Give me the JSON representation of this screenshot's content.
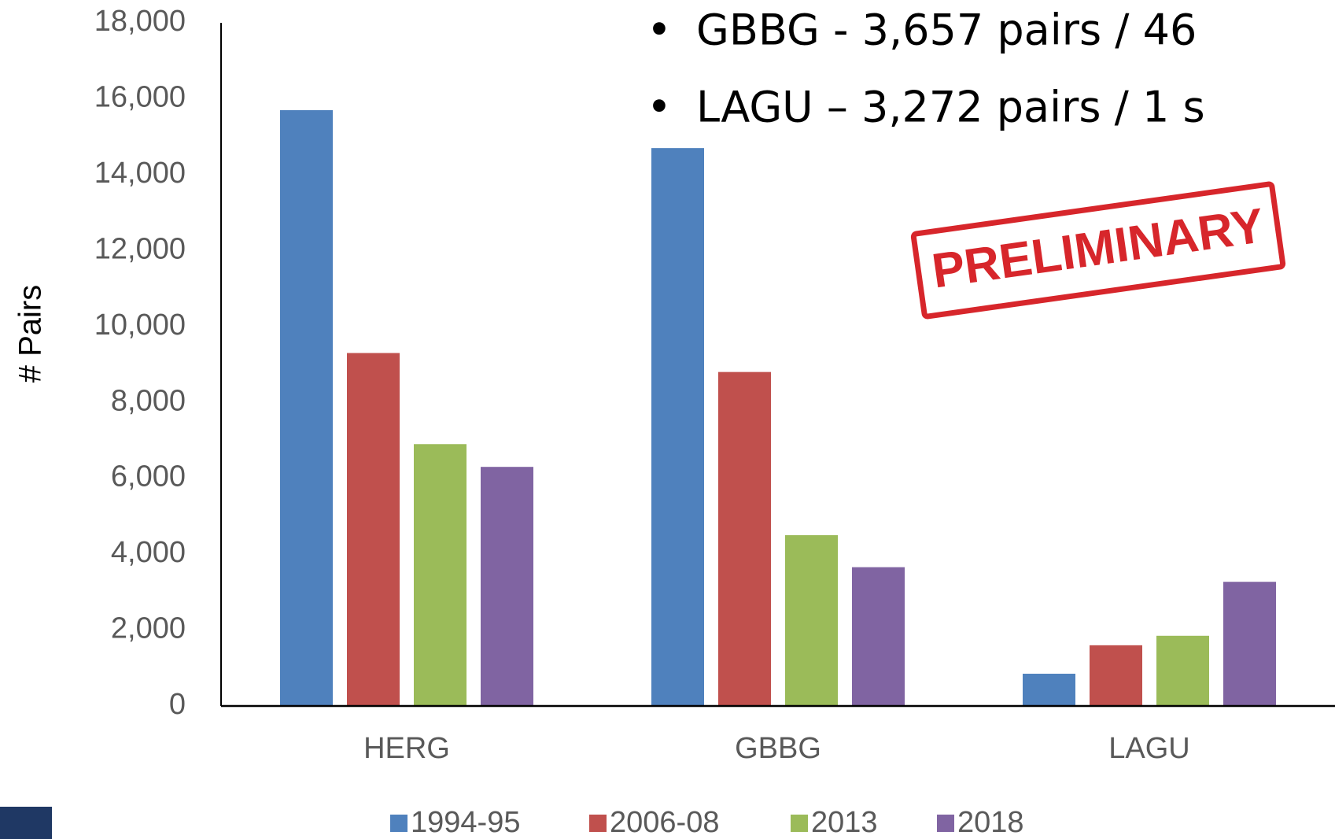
{
  "chart_data": {
    "type": "bar",
    "y_label": "# Pairs",
    "categories": [
      "HERG",
      "GBBG",
      "LAGU"
    ],
    "series": [
      {
        "name": "1994-95",
        "color": "#4f81bd",
        "values": [
          15700,
          14700,
          850
        ]
      },
      {
        "name": "2006-08",
        "color": "#c0504d",
        "values": [
          9300,
          8800,
          1600
        ]
      },
      {
        "name": "2013",
        "color": "#9bbb59",
        "values": [
          6900,
          4500,
          1850
        ]
      },
      {
        "name": "2018",
        "color": "#8064a2",
        "values": [
          6300,
          3657,
          3272
        ]
      }
    ],
    "ylim": [
      0,
      18000
    ],
    "yticks": [
      0,
      {
        "value": 2000,
        "label": "2,000"
      },
      {
        "value": 4000,
        "label": "4,000"
      },
      {
        "value": 6000,
        "label": "6,000"
      },
      {
        "value": 8000,
        "label": "8,000"
      },
      {
        "value": 10000,
        "label": "10,000"
      },
      {
        "value": 12000,
        "label": "12,000"
      },
      {
        "value": 14000,
        "label": "14,000"
      },
      {
        "value": 16000,
        "label": "16,000"
      },
      {
        "value": 18000,
        "label": "18,000"
      }
    ],
    "legend": "bottom",
    "grid": false,
    "annotations": [
      "GBBG - 3,657 pairs / 46",
      "LAGU – 3,272 pairs / 1 s",
      "PRELIMINARY"
    ]
  }
}
